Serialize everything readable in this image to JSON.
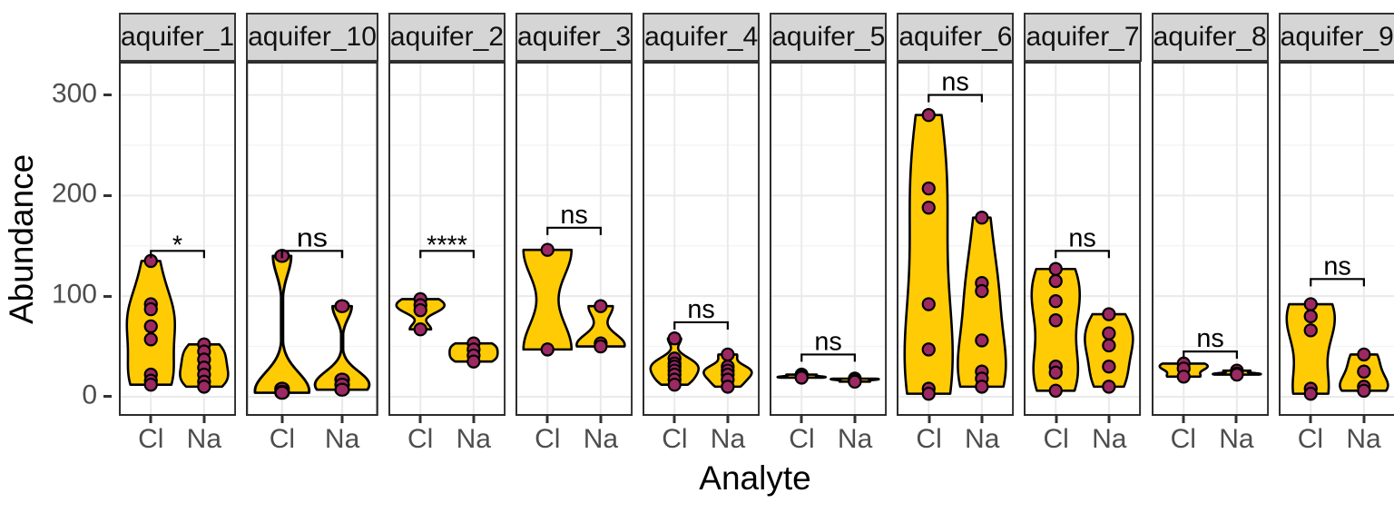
{
  "chart_data": {
    "type": "violin",
    "title": "",
    "xlabel": "Analyte",
    "ylabel": "Abundance",
    "ylim": [
      -19,
      333
    ],
    "yticks": [
      0,
      100,
      200,
      300
    ],
    "yminor_ticks": [
      50,
      150,
      250
    ],
    "categories": [
      "Cl",
      "Na"
    ],
    "legend": "none",
    "grid": "on",
    "facets": [
      {
        "label": "aquifer_1",
        "significance": "*",
        "bracket_y": 145,
        "series": [
          {
            "name": "Cl",
            "values": [
              135,
              92,
              87,
              70,
              57,
              22,
              16,
              12
            ]
          },
          {
            "name": "Na",
            "values": [
              52,
              45,
              37,
              29,
              22,
              15,
              10
            ]
          }
        ]
      },
      {
        "label": "aquifer_10",
        "significance": "ns",
        "bracket_y": 145,
        "series": [
          {
            "name": "Cl",
            "values": [
              140,
              8,
              5,
              4
            ]
          },
          {
            "name": "Na",
            "values": [
              90,
              17,
              12,
              7
            ]
          }
        ]
      },
      {
        "label": "aquifer_2",
        "significance": "****",
        "bracket_y": 145,
        "series": [
          {
            "name": "Cl",
            "values": [
              97,
              91,
              86,
              67
            ]
          },
          {
            "name": "Na",
            "values": [
              53,
              47,
              41,
              35
            ]
          }
        ]
      },
      {
        "label": "aquifer_3",
        "significance": "ns",
        "bracket_y": 168,
        "series": [
          {
            "name": "Cl",
            "values": [
              146,
              47
            ]
          },
          {
            "name": "Na",
            "values": [
              90,
              53,
              50
            ]
          }
        ]
      },
      {
        "label": "aquifer_4",
        "significance": "ns",
        "bracket_y": 74,
        "series": [
          {
            "name": "Cl",
            "values": [
              58,
              38,
              33,
              30,
              26,
              22,
              17,
              12
            ]
          },
          {
            "name": "Na",
            "values": [
              42,
              30,
              26,
              22,
              17,
              10
            ]
          }
        ]
      },
      {
        "label": "aquifer_5",
        "significance": "ns",
        "bracket_y": 42,
        "series": [
          {
            "name": "Cl",
            "values": [
              22,
              20,
              19
            ]
          },
          {
            "name": "Na",
            "values": [
              18,
              17,
              15
            ]
          }
        ]
      },
      {
        "label": "aquifer_6",
        "significance": "ns",
        "bracket_y": 300,
        "series": [
          {
            "name": "Cl",
            "values": [
              280,
              207,
              188,
              92,
              47,
              8,
              3
            ]
          },
          {
            "name": "Na",
            "values": [
              178,
              113,
              105,
              56,
              25,
              18,
              10
            ]
          }
        ]
      },
      {
        "label": "aquifer_7",
        "significance": "ns",
        "bracket_y": 145,
        "series": [
          {
            "name": "Cl",
            "values": [
              127,
              115,
              95,
              76,
              30,
              24,
              6
            ]
          },
          {
            "name": "Na",
            "values": [
              82,
              63,
              51,
              30,
              10
            ]
          }
        ]
      },
      {
        "label": "aquifer_8",
        "significance": "ns",
        "bracket_y": 45,
        "series": [
          {
            "name": "Cl",
            "values": [
              33,
              28,
              20
            ]
          },
          {
            "name": "Na",
            "values": [
              26,
              23,
              22
            ]
          }
        ]
      },
      {
        "label": "aquifer_9",
        "significance": "ns",
        "bracket_y": 117,
        "series": [
          {
            "name": "Cl",
            "values": [
              92,
              80,
              66,
              8,
              3
            ]
          },
          {
            "name": "Na",
            "values": [
              42,
              25,
              10,
              6
            ]
          }
        ]
      }
    ],
    "colors": {
      "violin_fill": "#FFCB05",
      "point_fill": "#9C2961",
      "outline": "#000000",
      "strip_bg": "#D5D5D5",
      "strip_border": "#333333",
      "panel_border": "#2B2B2B",
      "grid_major": "#EAEAEA",
      "grid_minor": "#F4F4F4",
      "axis_text": "#4D4D4D",
      "title_text": "#000000"
    }
  }
}
